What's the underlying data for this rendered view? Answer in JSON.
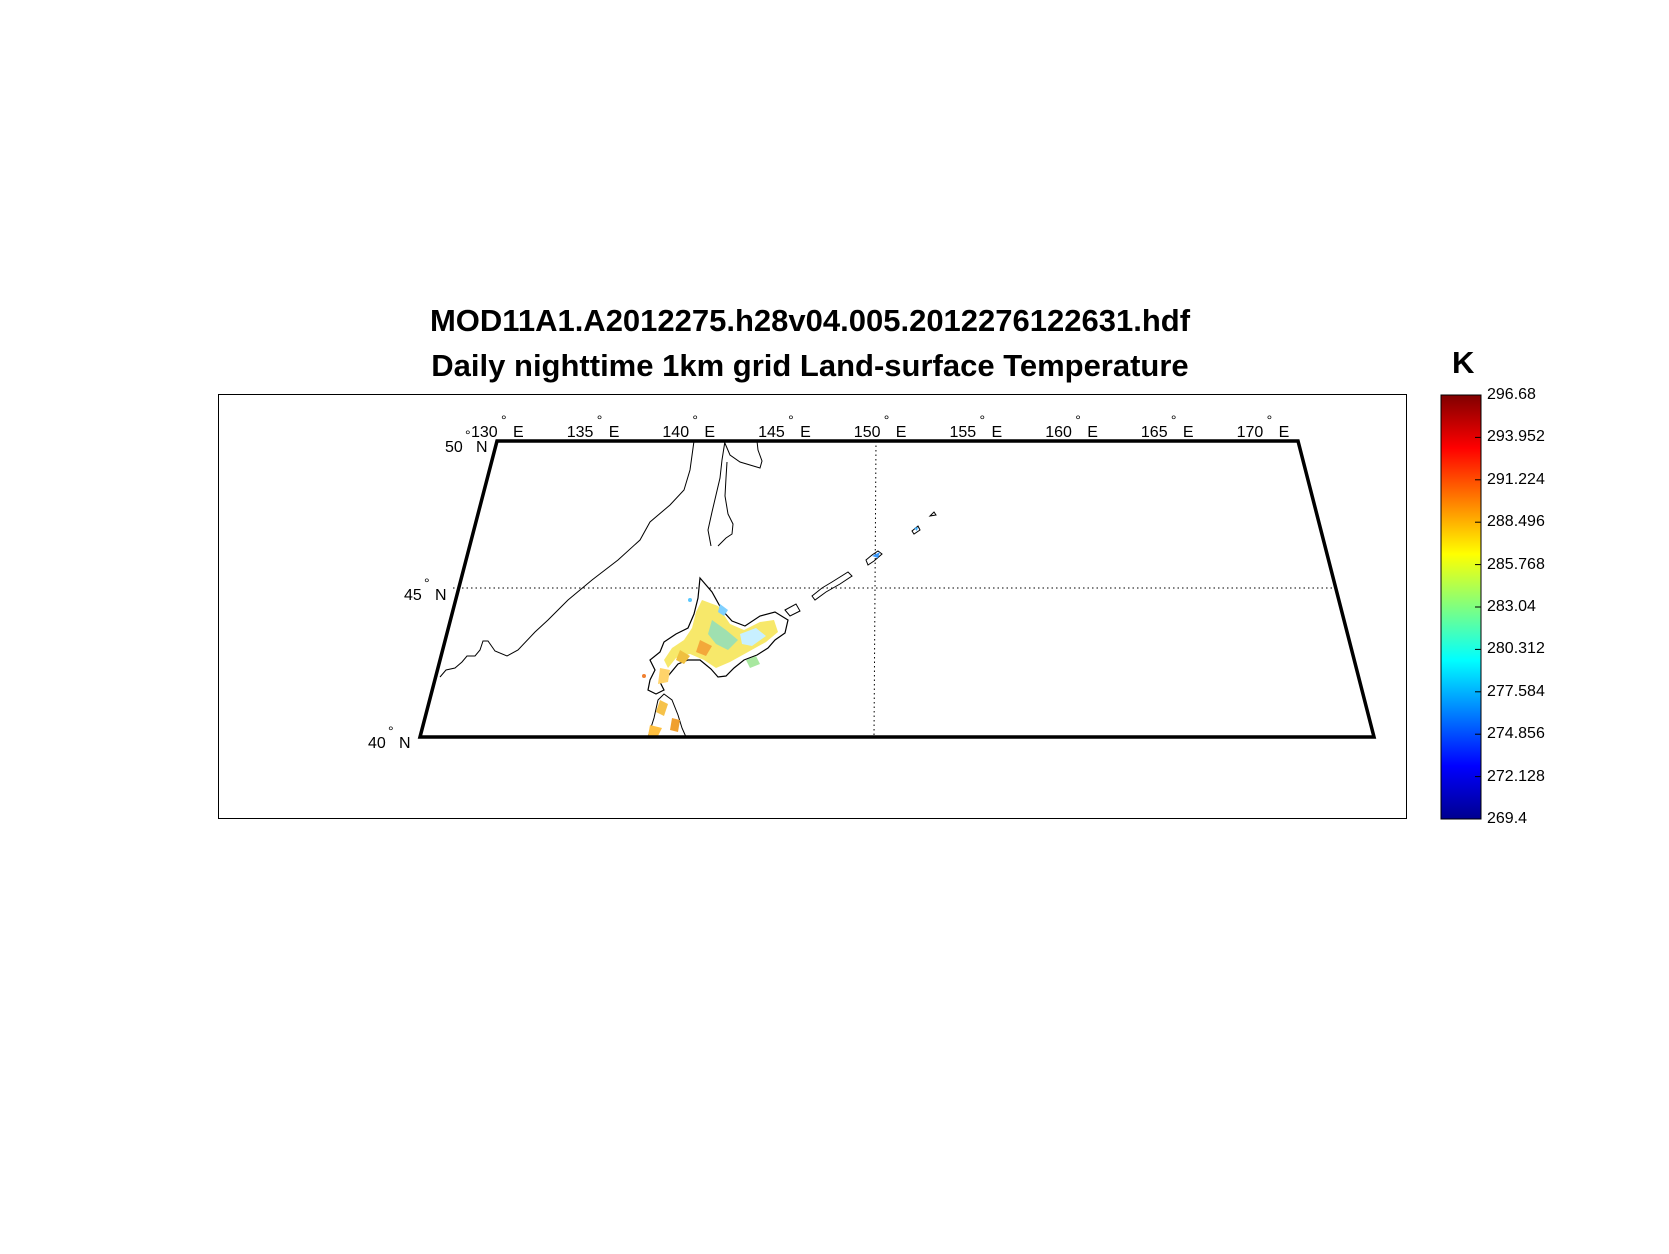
{
  "title": {
    "line1": "MOD11A1.A2012275.h28v04.005.2012276122631.hdf",
    "line2": "Daily nighttime 1km grid Land-surface Temperature"
  },
  "map": {
    "lon_range": [
      130,
      175
    ],
    "lat_range": [
      40,
      50
    ],
    "lon_labels": [
      {
        "lon": 130,
        "text": "130"
      },
      {
        "lon": 135,
        "text": "135"
      },
      {
        "lon": 140,
        "text": "140"
      },
      {
        "lon": 145,
        "text": "145"
      },
      {
        "lon": 150,
        "text": "150"
      },
      {
        "lon": 155,
        "text": "155"
      },
      {
        "lon": 160,
        "text": "160"
      },
      {
        "lon": 165,
        "text": "165"
      },
      {
        "lon": 170,
        "text": "170"
      }
    ],
    "lat_labels": [
      {
        "lat": 50,
        "text": "50"
      },
      {
        "lat": 45,
        "text": "45"
      },
      {
        "lat": 40,
        "text": "40"
      }
    ],
    "east_suffix": "E",
    "north_suffix": "N",
    "gridlines": {
      "lon": 150,
      "lat": 45,
      "style": "dotted"
    }
  },
  "colorbar": {
    "unit": "K",
    "min": 269.4,
    "max": 296.68,
    "ticks": [
      "296.68",
      "293.952",
      "291.224",
      "288.496",
      "285.768",
      "283.04",
      "280.312",
      "277.584",
      "274.856",
      "272.128",
      "269.4"
    ],
    "colormap": "jet"
  }
}
